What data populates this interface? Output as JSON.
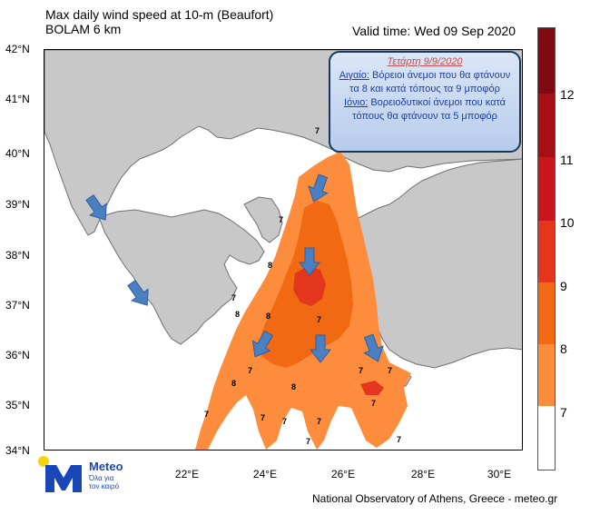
{
  "title": {
    "line1": "Max daily wind speed at 10-m (Beaufort)",
    "line2": "BOLAM 6 km"
  },
  "valid_time": "Valid time: Wed 09 Sep 2020",
  "latitude_labels": [
    "42°N",
    "41°N",
    "40°N",
    "39°N",
    "38°N",
    "37°N",
    "36°N",
    "35°N",
    "34°N"
  ],
  "longitude_labels": [
    "22°E",
    "24°E",
    "26°E",
    "28°E",
    "30°E"
  ],
  "colorbar": {
    "labels": [
      "12",
      "11",
      "10",
      "9",
      "8",
      "7"
    ],
    "colors": [
      "#ffffff",
      "#fd8d3c",
      "#f16913",
      "#e3361d",
      "#c7161e",
      "#a50f15",
      "#7f0a14"
    ]
  },
  "info_box": {
    "date": "Τετάρτη 9/9/2020",
    "region1": "Αιγαίο:",
    "text1": "Βόρειοι άνεμοι που θα φτάνουν τα 8 και κατά τόπους τα 9 μποφόρ",
    "region2": "Ιόνιο:",
    "text2": "Βορειοδυτικοί άνεμοι που κατά τόπους θα φτάνουν τα 5 μποφόρ"
  },
  "contour_labels": [
    "7",
    "8",
    "9"
  ],
  "map_colors": {
    "land": "#c8c8c8",
    "land_border": "#707070",
    "sea": "#ffffff",
    "wind7": "#fd8d3c",
    "wind8": "#f16913",
    "wind9": "#e3361d",
    "arrow": "#4a7fc1"
  },
  "logo": {
    "name": "Meteo",
    "tagline": "Όλα για τον καιρό"
  },
  "credit": "National Observatory of Athens, Greece - meteo.gr"
}
